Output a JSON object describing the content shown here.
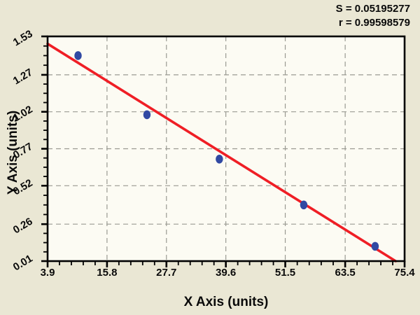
{
  "annotations": {
    "s_label": "S = 0.05195277",
    "r_label": "r = 0.99598579"
  },
  "chart_data": {
    "type": "scatter",
    "title": "",
    "xlabel": "X Axis (units)",
    "ylabel": "Y Axis (units)",
    "xlim": [
      3.9,
      75.4
    ],
    "ylim": [
      0.01,
      1.53
    ],
    "x_ticks": [
      3.9,
      15.8,
      27.7,
      39.6,
      51.5,
      63.5,
      75.4
    ],
    "x_tick_labels": [
      "3.9",
      "15.8",
      "27.7",
      "39.6",
      "51.5",
      "63.5",
      "75.4"
    ],
    "y_ticks": [
      0.01,
      0.26,
      0.52,
      0.77,
      1.02,
      1.27,
      1.53
    ],
    "y_tick_labels": [
      "0.01",
      "0.26",
      "0.52",
      "0.77",
      "1.02",
      "1.27",
      "1.53"
    ],
    "x_minor_per_major": 4,
    "y_minor_per_major": 3,
    "grid": "dashed",
    "legend": "none",
    "points": [
      {
        "x": 10.0,
        "y": 1.4
      },
      {
        "x": 23.8,
        "y": 1.0
      },
      {
        "x": 38.3,
        "y": 0.7
      },
      {
        "x": 55.2,
        "y": 0.39
      },
      {
        "x": 69.5,
        "y": 0.11
      }
    ],
    "regression_line": {
      "x1": 3.9,
      "y1": 1.48,
      "x2": 73.6,
      "y2": 0.01
    },
    "colors": {
      "page_bg": "#EAE7D4",
      "plot_bg": "#FCFBF3",
      "axis": "#000000",
      "grid": "#9a9a92",
      "point": "#3149A3",
      "line": "#EF1E25",
      "text": "#0a0a0a"
    }
  }
}
